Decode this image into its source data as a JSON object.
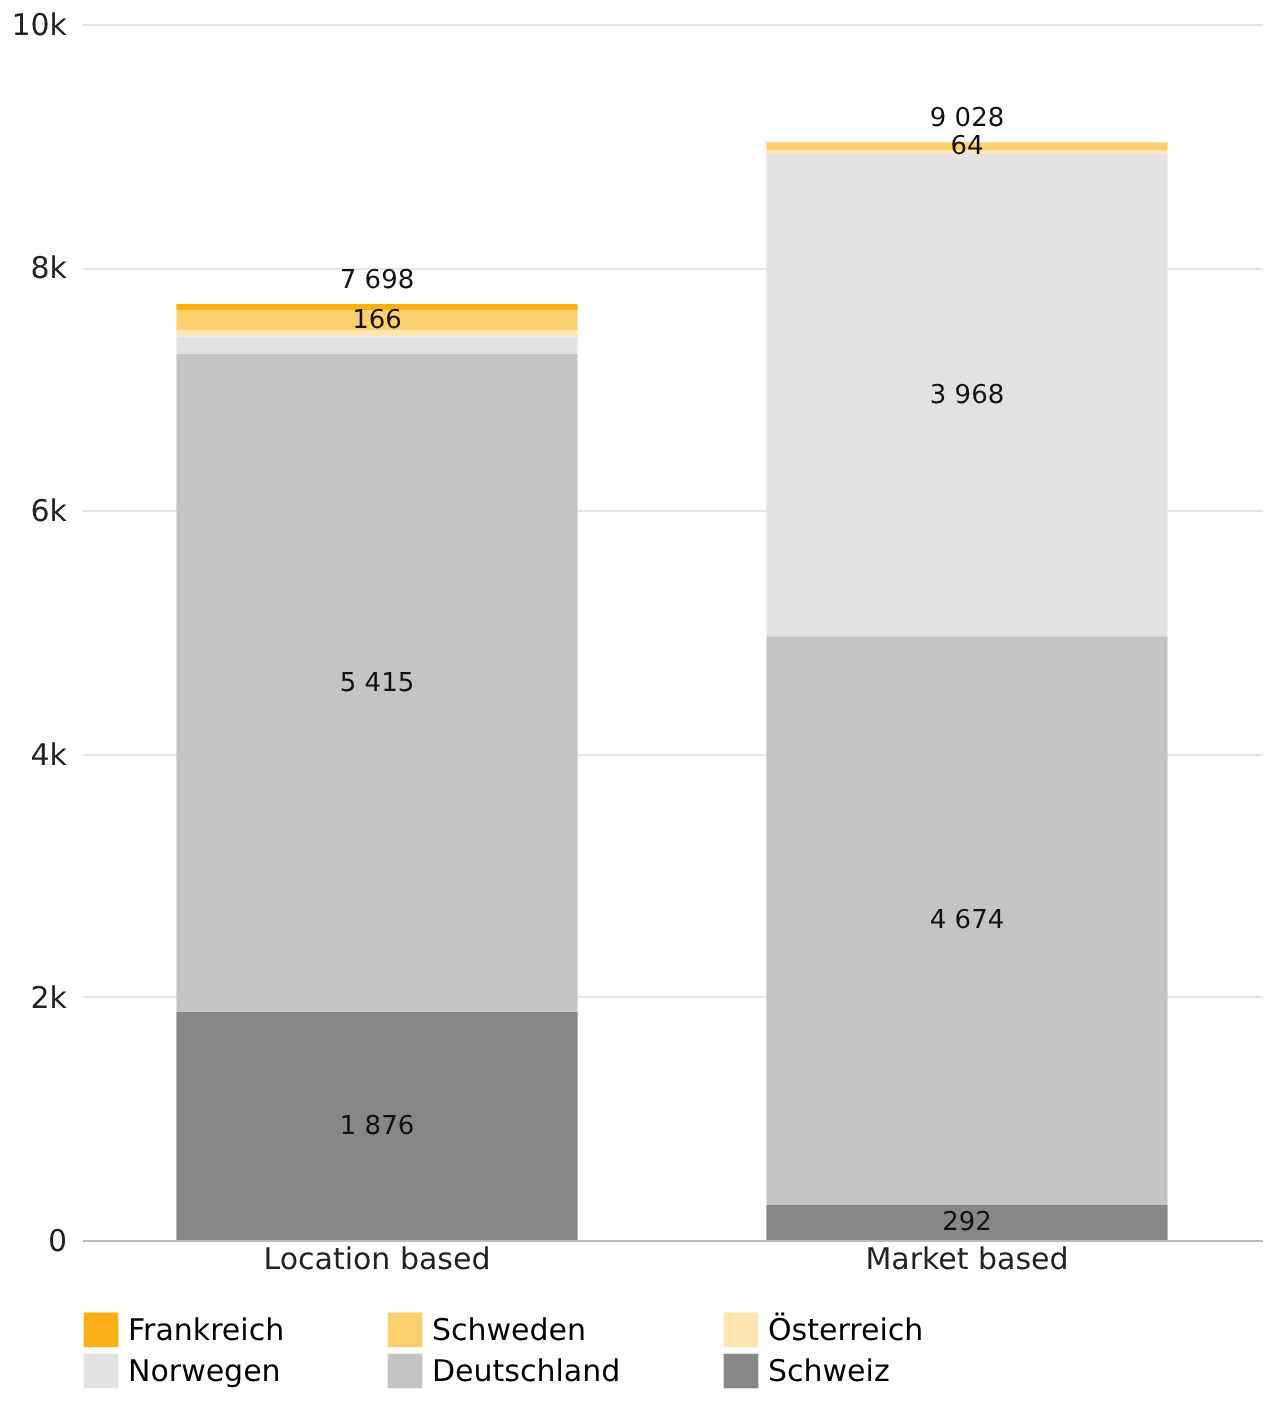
{
  "chart_data": {
    "type": "bar",
    "stacked": true,
    "categories": [
      "Location based",
      "Market based"
    ],
    "series": [
      {
        "name": "Schweiz",
        "color": "#878787",
        "values": [
          1876,
          292
        ],
        "value_labels": [
          "1 876",
          "292"
        ]
      },
      {
        "name": "Deutschland",
        "color": "#c4c4c4",
        "values": [
          5415,
          4674
        ],
        "value_labels": [
          "5 415",
          "4 674"
        ]
      },
      {
        "name": "Norwegen",
        "color": "#e2e2e2",
        "values": [
          140,
          3968
        ],
        "value_labels": [
          null,
          "3 968"
        ]
      },
      {
        "name": "Österreich",
        "color": "#fee6b3",
        "values": [
          50,
          30
        ],
        "value_labels": [
          null,
          null
        ]
      },
      {
        "name": "Schweden",
        "color": "#fdd06f",
        "values": [
          166,
          64
        ],
        "value_labels": [
          "166",
          "64"
        ]
      },
      {
        "name": "Frankreich",
        "color": "#fbb116",
        "values": [
          50,
          0
        ],
        "value_labels": [
          null,
          null
        ]
      }
    ],
    "totals": [
      "7 698",
      "9 028"
    ],
    "ylim": [
      0,
      10000
    ],
    "yticks": [
      {
        "value": 0,
        "label": "0"
      },
      {
        "value": 2000,
        "label": "2k"
      },
      {
        "value": 4000,
        "label": "4k"
      },
      {
        "value": 6000,
        "label": "6k"
      },
      {
        "value": 8000,
        "label": "8k"
      },
      {
        "value": 10000,
        "label": "10k"
      }
    ],
    "grid": "y",
    "legend": "bottom"
  }
}
